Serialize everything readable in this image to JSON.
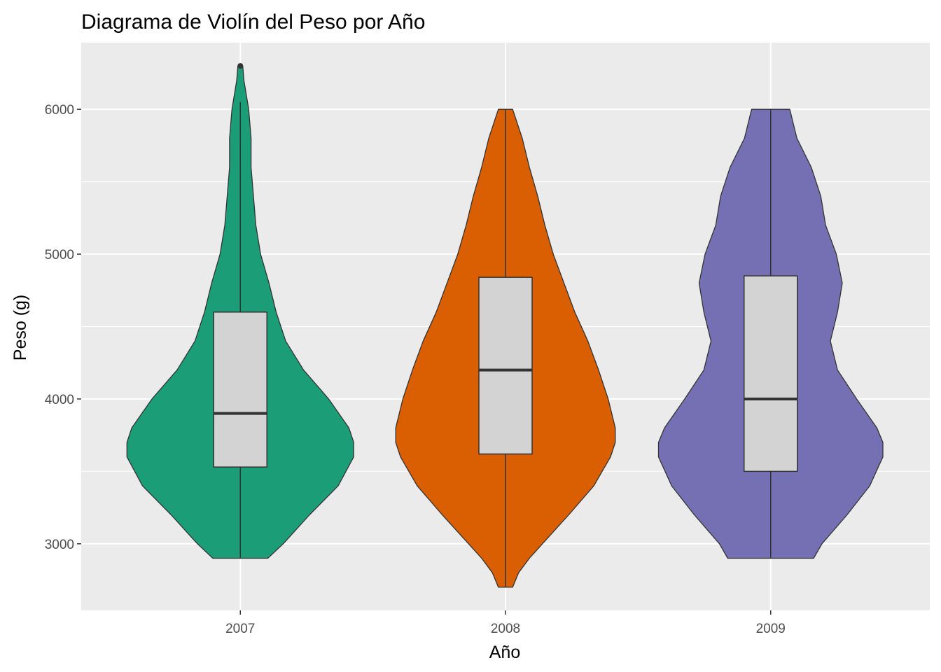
{
  "chart_data": {
    "type": "violin",
    "title": "Diagrama de Violín del Peso por Año",
    "xlabel": "Año",
    "ylabel": "Peso (g)",
    "ylim": [
      2540,
      6460
    ],
    "yticks": [
      "3000",
      "4000",
      "5000",
      "6000"
    ],
    "grid": true,
    "legend": "none",
    "categories": [
      "2007",
      "2008",
      "2009"
    ],
    "series": [
      {
        "category": "2007",
        "fill": "#1B9E77",
        "min": 2900,
        "max": 6300,
        "box": {
          "q1": 3530,
          "median": 3900,
          "q3": 4600,
          "whisker_low": 2900,
          "whisker_high": 6050
        },
        "outliers": [
          6300
        ],
        "density": [
          [
            2900,
            0.23
          ],
          [
            3000,
            0.36
          ],
          [
            3200,
            0.58
          ],
          [
            3400,
            0.82
          ],
          [
            3600,
            0.95
          ],
          [
            3700,
            0.95
          ],
          [
            3800,
            0.91
          ],
          [
            4000,
            0.74
          ],
          [
            4200,
            0.53
          ],
          [
            4400,
            0.38
          ],
          [
            4600,
            0.3
          ],
          [
            4800,
            0.24
          ],
          [
            5000,
            0.17
          ],
          [
            5200,
            0.13
          ],
          [
            5400,
            0.11
          ],
          [
            5600,
            0.09
          ],
          [
            5800,
            0.09
          ],
          [
            6000,
            0.07
          ],
          [
            6100,
            0.05
          ],
          [
            6200,
            0.03
          ],
          [
            6300,
            0.02
          ]
        ]
      },
      {
        "category": "2008",
        "fill": "#D95F02",
        "min": 2700,
        "max": 6000,
        "box": {
          "q1": 3620,
          "median": 4200,
          "q3": 4840,
          "whisker_low": 2700,
          "whisker_high": 6000
        },
        "outliers": [],
        "density": [
          [
            2700,
            0.06
          ],
          [
            2800,
            0.11
          ],
          [
            2900,
            0.2
          ],
          [
            3000,
            0.31
          ],
          [
            3200,
            0.53
          ],
          [
            3400,
            0.74
          ],
          [
            3600,
            0.88
          ],
          [
            3700,
            0.92
          ],
          [
            3800,
            0.92
          ],
          [
            4000,
            0.86
          ],
          [
            4200,
            0.78
          ],
          [
            4400,
            0.69
          ],
          [
            4600,
            0.58
          ],
          [
            4800,
            0.49
          ],
          [
            5000,
            0.4
          ],
          [
            5200,
            0.33
          ],
          [
            5400,
            0.27
          ],
          [
            5600,
            0.2
          ],
          [
            5800,
            0.14
          ],
          [
            6000,
            0.06
          ]
        ]
      },
      {
        "category": "2009",
        "fill": "#7570B3",
        "min": 2900,
        "max": 6000,
        "box": {
          "q1": 3500,
          "median": 4000,
          "q3": 4850,
          "whisker_low": 2900,
          "whisker_high": 6000
        },
        "outliers": [],
        "density": [
          [
            2900,
            0.36
          ],
          [
            3000,
            0.43
          ],
          [
            3200,
            0.64
          ],
          [
            3400,
            0.83
          ],
          [
            3600,
            0.94
          ],
          [
            3700,
            0.94
          ],
          [
            3800,
            0.89
          ],
          [
            4000,
            0.72
          ],
          [
            4200,
            0.56
          ],
          [
            4400,
            0.5
          ],
          [
            4600,
            0.56
          ],
          [
            4800,
            0.6
          ],
          [
            5000,
            0.55
          ],
          [
            5200,
            0.46
          ],
          [
            5400,
            0.42
          ],
          [
            5600,
            0.34
          ],
          [
            5800,
            0.22
          ],
          [
            6000,
            0.16
          ]
        ]
      }
    ],
    "colors": {
      "panel": "#EBEBEB",
      "grid": "#FFFFFF",
      "outline": "#333333",
      "box_fill": "#D3D3D3"
    }
  }
}
